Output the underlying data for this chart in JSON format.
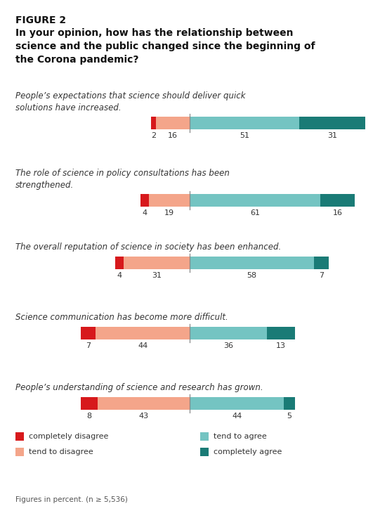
{
  "figure_label": "FIGURE 2",
  "title_line1": "In your opinion, how has the relationship between",
  "title_line2": "science and the public changed since the beginning of",
  "title_line3": "the Corona pandemic?",
  "footer": "Figures in percent. (n ≥ 5,536)",
  "bars": [
    {
      "label_line1": "People’s expectations that science should deliver quick",
      "label_line2": "solutions have increased.",
      "completely_disagree": 2,
      "tend_to_disagree": 16,
      "tend_to_agree": 51,
      "completely_agree": 31
    },
    {
      "label_line1": "The role of science in policy consultations has been",
      "label_line2": "strengthened.",
      "completely_disagree": 4,
      "tend_to_disagree": 19,
      "tend_to_agree": 61,
      "completely_agree": 16
    },
    {
      "label_line1": "The overall reputation of science in society has been enhanced.",
      "label_line2": "",
      "completely_disagree": 4,
      "tend_to_disagree": 31,
      "tend_to_agree": 58,
      "completely_agree": 7
    },
    {
      "label_line1": "Science communication has become more difficult.",
      "label_line2": "",
      "completely_disagree": 7,
      "tend_to_disagree": 44,
      "tend_to_agree": 36,
      "completely_agree": 13
    },
    {
      "label_line1": "People’s understanding of science and research has grown.",
      "label_line2": "",
      "completely_disagree": 8,
      "tend_to_disagree": 43,
      "tend_to_agree": 44,
      "completely_agree": 5
    }
  ],
  "colors": {
    "completely_disagree": "#d7191c",
    "tend_to_disagree": "#f4a58a",
    "tend_to_agree": "#74c4c2",
    "completely_agree": "#1a7b76"
  },
  "legend": [
    {
      "label": "completely disagree",
      "color": "#d7191c"
    },
    {
      "label": "tend to disagree",
      "color": "#f4a58a"
    },
    {
      "label": "tend to agree",
      "color": "#74c4c2"
    },
    {
      "label": "completely agree",
      "color": "#1a7b76"
    }
  ],
  "background_color": "#ffffff",
  "max_disagree": 51,
  "max_agree": 82,
  "total_range": 133
}
